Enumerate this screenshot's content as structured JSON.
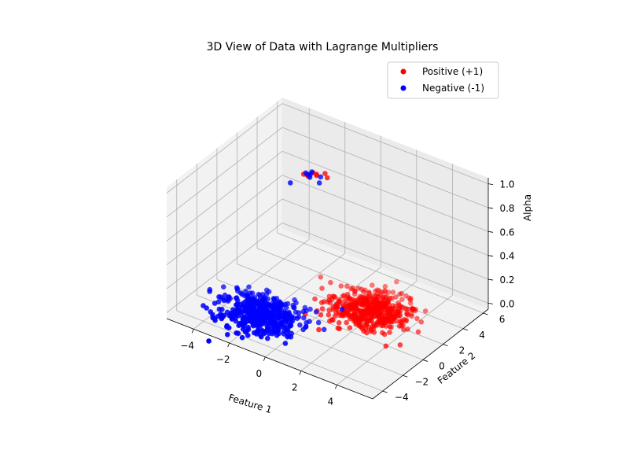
{
  "chart_data": {
    "type": "scatter",
    "projection": "3d",
    "title": "3D View of Data with Lagrange Multipliers",
    "xlabel": "Feature 1",
    "ylabel": "Feature 2",
    "zlabel": "Alpha",
    "xlim": [
      -5.5,
      6.0
    ],
    "ylim": [
      -5.0,
      6.5
    ],
    "zlim": [
      -0.05,
      1.05
    ],
    "xticks": [
      "−4",
      "−2",
      "0",
      "2",
      "4"
    ],
    "yticks": [
      "−4",
      "−2",
      "0",
      "2",
      "4",
      "6"
    ],
    "zticks": [
      "0.0",
      "0.2",
      "0.4",
      "0.6",
      "0.8",
      "1.0"
    ],
    "xtick_values": [
      -4,
      -2,
      0,
      2,
      4
    ],
    "ytick_values": [
      -4,
      -2,
      0,
      2,
      4,
      6
    ],
    "ztick_values": [
      0.0,
      0.2,
      0.4,
      0.6,
      0.8,
      1.0
    ],
    "grid": true,
    "legend_position": "top-right",
    "series": [
      {
        "name": "Positive (+1)",
        "color": "#ff0000",
        "cluster": {
          "n_points": 500,
          "x_center": 2.0,
          "y_center": 2.0,
          "spread": 1.0,
          "alpha_value": 0.0
        },
        "support_vectors": [
          {
            "x": -1.18,
            "y": 1.24,
            "z": 1.0
          },
          {
            "x": -1.05,
            "y": 1.62,
            "z": 1.0
          },
          {
            "x": -0.78,
            "y": 1.5,
            "z": 1.0
          },
          {
            "x": -1.32,
            "y": 1.18,
            "z": 1.0
          },
          {
            "x": -1.05,
            "y": 1.15,
            "z": 1.0
          },
          {
            "x": -0.84,
            "y": 1.6,
            "z": 1.0
          },
          {
            "x": -0.56,
            "y": 1.95,
            "z": 1.0
          },
          {
            "x": -0.27,
            "y": 1.66,
            "z": 1.0
          }
        ]
      },
      {
        "name": "Negative (-1)",
        "color": "#0000ff",
        "cluster": {
          "n_points": 500,
          "x_center": -2.0,
          "y_center": -2.0,
          "spread": 1.0,
          "alpha_value": 0.0
        },
        "support_vectors": [
          {
            "x": -1.3,
            "y": 1.36,
            "z": 1.0
          },
          {
            "x": -1.15,
            "y": 1.3,
            "z": 1.0
          },
          {
            "x": -1.05,
            "y": 1.34,
            "z": 1.0
          },
          {
            "x": -1.12,
            "y": 1.64,
            "z": 1.0
          },
          {
            "x": -0.94,
            "y": 1.12,
            "z": 1.0
          },
          {
            "x": -0.32,
            "y": 0.96,
            "z": 1.0
          },
          {
            "x": -0.56,
            "y": 1.51,
            "z": 1.0
          },
          {
            "x": -1.4,
            "y": 0.0,
            "z": 1.0
          },
          {
            "x": 0.85,
            "y": 1.12,
            "z": 0.0
          }
        ]
      }
    ]
  }
}
